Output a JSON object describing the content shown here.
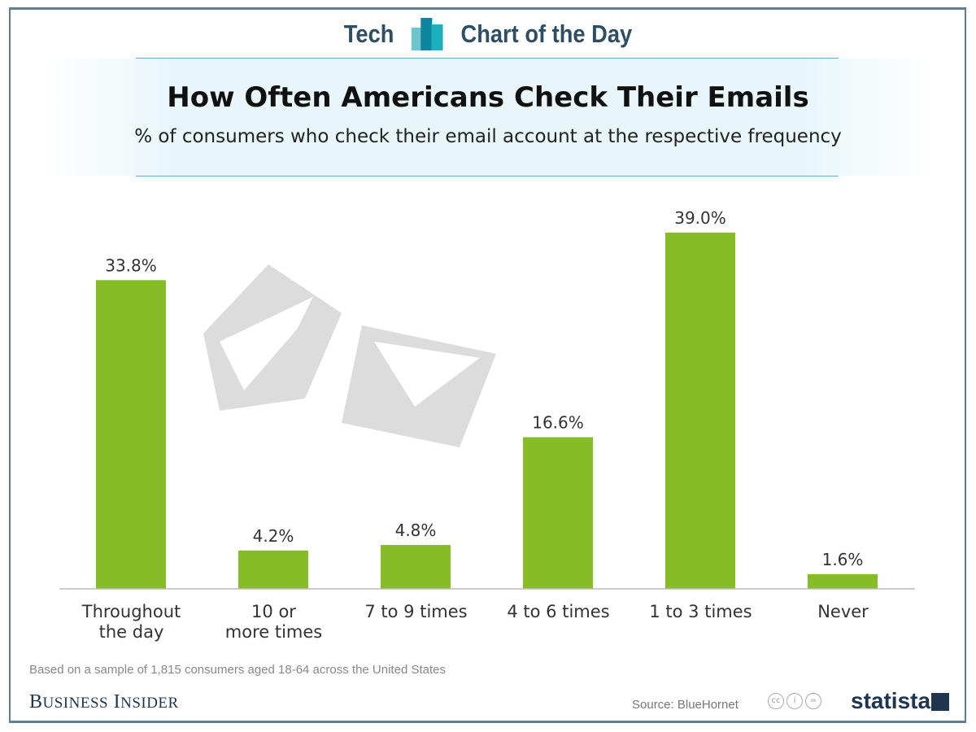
{
  "header": {
    "left": "Tech",
    "right": "Chart of the Day"
  },
  "chart_data": {
    "type": "bar",
    "title": "How Often Americans Check Their Emails",
    "subtitle": "% of consumers who check their email account at the respective frequency",
    "categories": [
      [
        "Throughout",
        "the day"
      ],
      [
        "10 or",
        "more times"
      ],
      [
        "7 to 9 times"
      ],
      [
        "4 to 6 times"
      ],
      [
        "1 to 3 times"
      ],
      [
        "Never"
      ]
    ],
    "values": [
      33.8,
      4.2,
      4.8,
      16.6,
      39.0,
      1.6
    ],
    "data_labels": [
      "33.8%",
      "4.2%",
      "4.8%",
      "16.6%",
      "39.0%",
      "1.6%"
    ],
    "ylim": [
      0,
      39.0
    ],
    "grid": false,
    "bar_color": "#86bc25"
  },
  "footer": {
    "note": "Based on a sample of 1,815 consumers aged 18-64 across the United States",
    "publisher": "Business Insider",
    "source": "Source: BlueHornet",
    "brand": "statista"
  }
}
